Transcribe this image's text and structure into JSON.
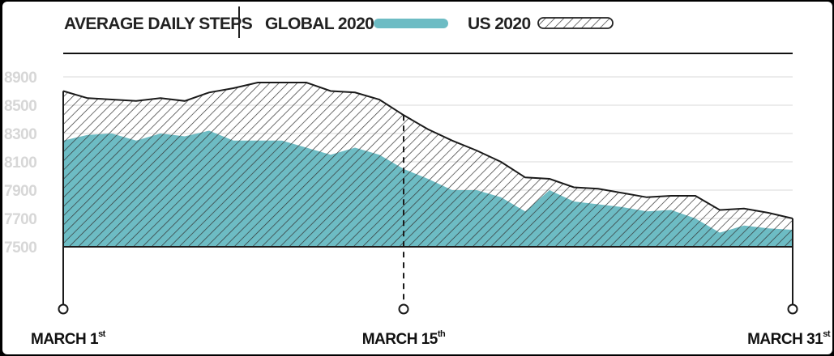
{
  "chart_data": {
    "type": "area",
    "title": "AVERAGE DAILY STEPS",
    "xlabel": "",
    "ylabel": "",
    "ylim": [
      7500,
      9000
    ],
    "yticks": [
      "8900",
      "8500",
      "8300",
      "8100",
      "7900",
      "7700",
      "7500"
    ],
    "ytick_values": [
      8900,
      8500,
      8300,
      8100,
      7900,
      7700,
      7500
    ],
    "x_labels": [
      {
        "label": "MARCH 1",
        "sup": "st",
        "day": 1
      },
      {
        "label": "MARCH 15",
        "sup": "th",
        "day": 15
      },
      {
        "label": "MARCH 31",
        "sup": "st",
        "day": 31
      }
    ],
    "marker_day": 15,
    "grid": true,
    "legend_position": "top",
    "colors": {
      "global": "#6dbcc4",
      "us_hatch": "#333333",
      "grid": "#d9d9d9",
      "axis": "#1a1a1a",
      "ytick": "#d7d7d7"
    },
    "series": [
      {
        "name": "GLOBAL 2020",
        "x": [
          1,
          2,
          3,
          4,
          5,
          6,
          7,
          8,
          9,
          10,
          11,
          12,
          13,
          14,
          15,
          16,
          17,
          18,
          19,
          20,
          21,
          22,
          23,
          24,
          25,
          26,
          27,
          28,
          29,
          30,
          31
        ],
        "values": [
          8250,
          8290,
          8300,
          8250,
          8300,
          8280,
          8320,
          8250,
          8250,
          8250,
          8200,
          8150,
          8200,
          8150,
          8050,
          7980,
          7900,
          7900,
          7850,
          7750,
          7900,
          7820,
          7800,
          7780,
          7750,
          7760,
          7700,
          7600,
          7650,
          7630,
          7620
        ]
      },
      {
        "name": "US 2020",
        "x": [
          1,
          2,
          3,
          4,
          5,
          6,
          7,
          8,
          9,
          10,
          11,
          12,
          13,
          14,
          15,
          16,
          17,
          18,
          19,
          20,
          21,
          22,
          23,
          24,
          25,
          26,
          27,
          28,
          29,
          30,
          31
        ],
        "values": [
          8600,
          8550,
          8540,
          8530,
          8550,
          8530,
          8590,
          8620,
          8660,
          8660,
          8660,
          8600,
          8590,
          8540,
          8430,
          8330,
          8250,
          8180,
          8100,
          7990,
          7980,
          7920,
          7910,
          7880,
          7850,
          7860,
          7860,
          7760,
          7770,
          7740,
          7700
        ]
      }
    ]
  }
}
